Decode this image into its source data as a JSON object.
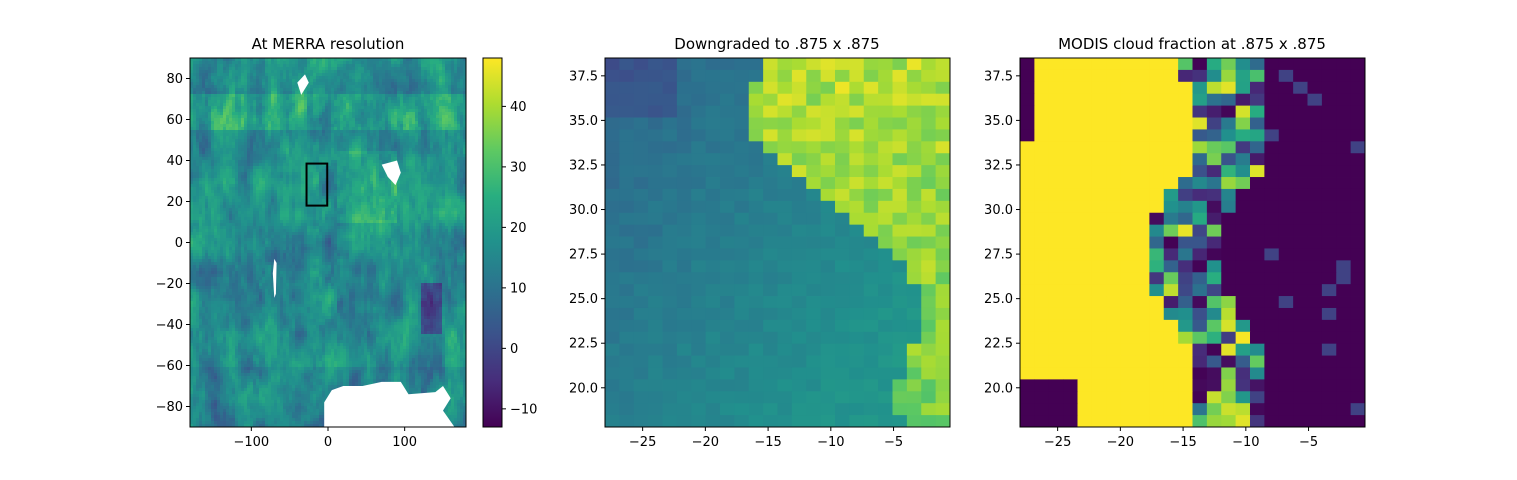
{
  "chart_data": [
    {
      "type": "heatmap",
      "title": "At MERRA resolution",
      "xlim": [
        -180,
        180
      ],
      "ylim": [
        -90,
        90
      ],
      "xticks": [
        -100,
        0,
        100
      ],
      "xtick_labels": [
        "−100",
        "0",
        "100"
      ],
      "yticks": [
        -80,
        -60,
        -40,
        -20,
        0,
        20,
        40,
        60,
        80
      ],
      "ytick_labels": [
        "−80",
        "−60",
        "−40",
        "−20",
        "0",
        "20",
        "40",
        "60",
        "80"
      ],
      "colormap": "viridis",
      "colorbar": {
        "range": [
          -13,
          48
        ],
        "ticks": [
          -10,
          0,
          10,
          20,
          30,
          40
        ],
        "tick_labels": [
          "−10",
          "0",
          "10",
          "20",
          "30",
          "40"
        ]
      },
      "highlight_box": {
        "lon": [
          -28,
          -1
        ],
        "lat": [
          18,
          38.5
        ]
      },
      "missing_regions": [
        "Antarctic sector near (-20..100 lon, -90..-70 lat)",
        "Tibet/Himalaya",
        "Greenland",
        "Andes"
      ]
    },
    {
      "type": "heatmap",
      "title": "Downgraded to .875 x .875",
      "xlim": [
        -28,
        -0.5
      ],
      "ylim": [
        17.8,
        38.5
      ],
      "xticks": [
        -25,
        -20,
        -15,
        -10,
        -5
      ],
      "xtick_labels": [
        "−25",
        "−20",
        "−15",
        "−10",
        "−5"
      ],
      "yticks": [
        20.0,
        22.5,
        25.0,
        27.5,
        30.0,
        32.5,
        35.0,
        37.5
      ],
      "ytick_labels": [
        "20.0",
        "22.5",
        "25.0",
        "27.5",
        "30.0",
        "32.5",
        "35.0",
        "37.5"
      ],
      "colormap": "viridis",
      "value_range": [
        -13,
        48
      ],
      "grid_size": [
        31,
        24
      ]
    },
    {
      "type": "heatmap",
      "title": "MODIS cloud fraction at .875 x .875",
      "xlim": [
        -28,
        -0.5
      ],
      "ylim": [
        17.8,
        38.5
      ],
      "xticks": [
        -25,
        -20,
        -15,
        -10,
        -5
      ],
      "xtick_labels": [
        "−25",
        "−20",
        "−15",
        "−10",
        "−5"
      ],
      "yticks": [
        20.0,
        22.5,
        25.0,
        27.5,
        30.0,
        32.5,
        35.0,
        37.5
      ],
      "ytick_labels": [
        "20.0",
        "22.5",
        "25.0",
        "27.5",
        "30.0",
        "32.5",
        "35.0",
        "37.5"
      ],
      "colormap": "viridis",
      "value_range": [
        0,
        1
      ],
      "grid_size": [
        31,
        24
      ]
    }
  ]
}
